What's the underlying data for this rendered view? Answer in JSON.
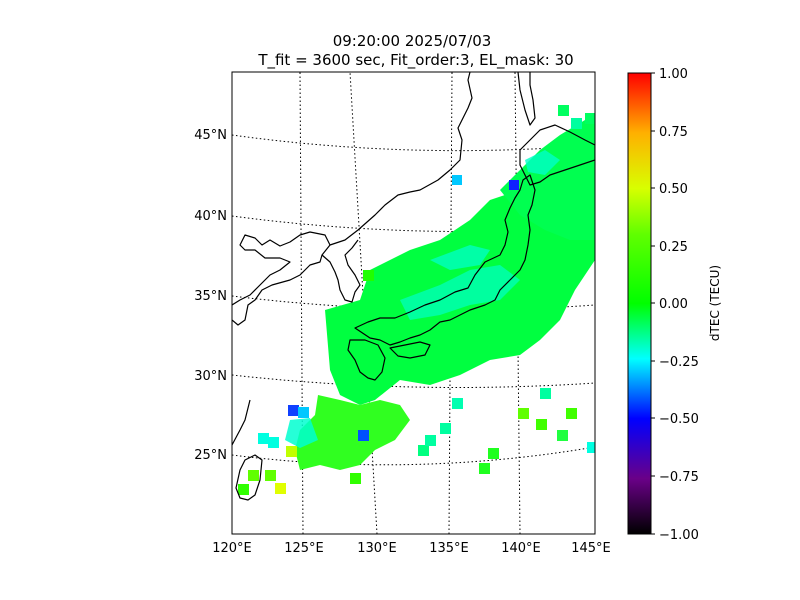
{
  "title": {
    "line1": "09:20:00 2025/07/03",
    "line2": "T_fit = 3600 sec, Fit_order:3, EL_mask: 30"
  },
  "map": {
    "lon_ticks": [
      "120°E",
      "125°E",
      "130°E",
      "135°E",
      "140°E",
      "145°E"
    ],
    "lat_ticks": [
      "25°N",
      "30°N",
      "35°N",
      "40°N",
      "45°N"
    ],
    "graticule_style": "dotted",
    "coastline_color": "#000000"
  },
  "colorbar": {
    "label": "dTEC (TECU)",
    "ticks": [
      "1.00",
      "0.75",
      "0.50",
      "0.25",
      "0.00",
      "−0.25",
      "−0.50",
      "−0.75",
      "−1.00"
    ],
    "range": [
      -1.0,
      1.0
    ],
    "colormap": "nipy_spectral-like",
    "stops": [
      "#000000",
      "#6a0088",
      "#0000ff",
      "#00ffff",
      "#00ff00",
      "#d8ff00",
      "#ffb000",
      "#ff0000"
    ]
  },
  "chart_data": {
    "type": "heatmap",
    "description_source": "map of dTEC observations over Japan",
    "units": "TECU",
    "value_range": [
      -1.0,
      1.0
    ],
    "regions": [
      {
        "lon": [
          130,
          145
        ],
        "lat": [
          31,
          40
        ],
        "value": 0.0
      },
      {
        "lon": [
          139,
          145
        ],
        "lat": [
          40,
          46
        ],
        "value": 0.0
      },
      {
        "lon": [
          124,
          131
        ],
        "lat": [
          22,
          30
        ],
        "value": 0.1
      },
      {
        "lon": [
          124,
          126
        ],
        "lat": [
          27,
          28
        ],
        "value": -0.5
      },
      {
        "lon": [
          139.5,
          140.5
        ],
        "lat": [
          41.5,
          42.5
        ],
        "value": -0.5
      },
      {
        "lon": [
          123,
          124
        ],
        "lat": [
          22,
          23
        ],
        "value": 0.5
      }
    ]
  }
}
